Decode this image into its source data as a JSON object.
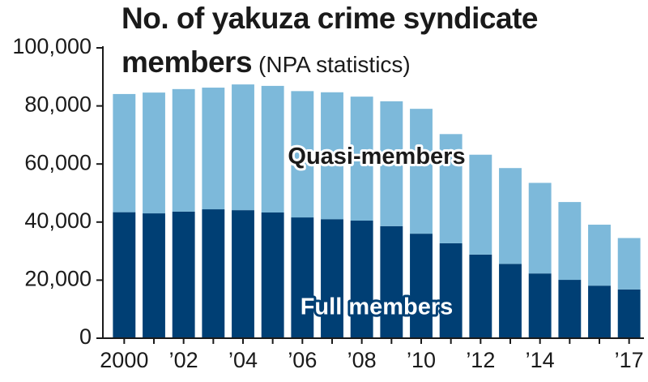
{
  "chart_data": {
    "type": "stacked-bar",
    "title": "No. of yakuza crime syndicate members",
    "subtitle": "(NPA statistics)",
    "categories": [
      "2000",
      null,
      "’02",
      null,
      "’04",
      null,
      "’06",
      null,
      "’08",
      null,
      "’10",
      null,
      "’12",
      null,
      "’14",
      null,
      null,
      "’17"
    ],
    "series": [
      {
        "name": "Full members",
        "color": "#003f74",
        "values": [
          43400,
          43000,
          43600,
          44400,
          44100,
          43300,
          41600,
          41000,
          40500,
          38600,
          36000,
          32700,
          28800,
          25600,
          22300,
          20100,
          18100,
          16800
        ]
      },
      {
        "name": "Quasi-members",
        "color": "#7db9da",
        "values": [
          40700,
          41600,
          42200,
          41900,
          43300,
          43600,
          43500,
          43700,
          42700,
          43000,
          43000,
          37600,
          34400,
          33000,
          31200,
          26800,
          21000,
          17700
        ]
      }
    ],
    "ylim": [
      0,
      100000
    ],
    "yticks": [
      0,
      {
        "value": 20000,
        "label": "20,000"
      },
      {
        "value": 40000,
        "label": "40,000"
      },
      {
        "value": 60000,
        "label": "60,000"
      },
      {
        "value": 80000,
        "label": "80,000"
      },
      {
        "value": 100000,
        "label": "100,000"
      }
    ]
  }
}
